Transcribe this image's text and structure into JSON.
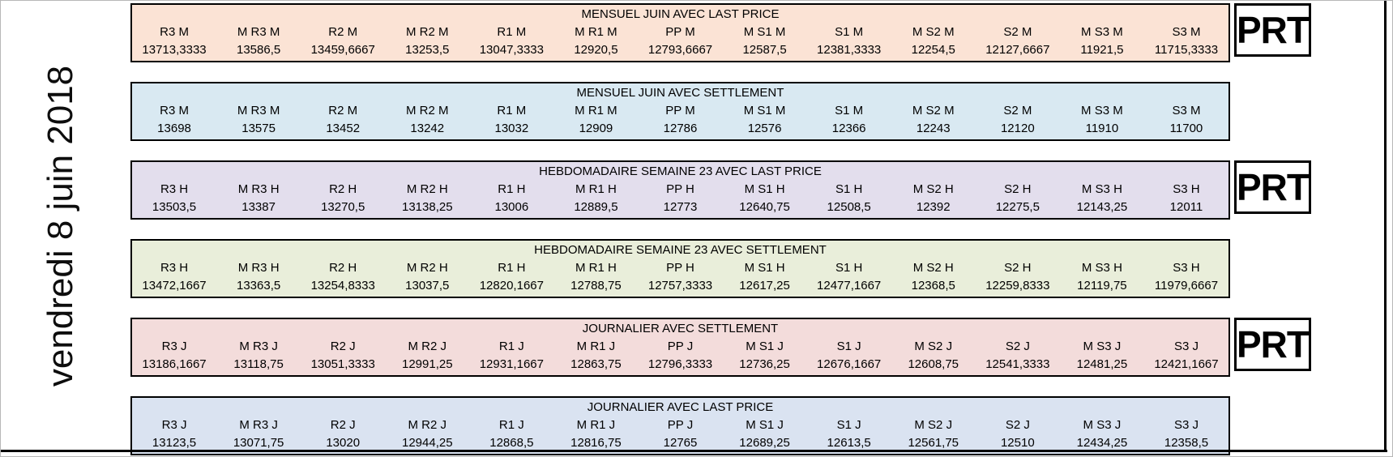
{
  "date_label": "vendredi 8 juin 2018",
  "prt_label": "PRT",
  "bands": [
    {
      "title": "MENSUEL JUIN AVEC LAST PRICE",
      "bg": "#fbe3d5",
      "prt": true,
      "columns": [
        {
          "label": "R3 M",
          "value": "13713,3333"
        },
        {
          "label": "M R3 M",
          "value": "13586,5"
        },
        {
          "label": "R2 M",
          "value": "13459,6667"
        },
        {
          "label": "M R2 M",
          "value": "13253,5"
        },
        {
          "label": "R1 M",
          "value": "13047,3333"
        },
        {
          "label": "M R1 M",
          "value": "12920,5"
        },
        {
          "label": "PP M",
          "value": "12793,6667"
        },
        {
          "label": "M S1 M",
          "value": "12587,5"
        },
        {
          "label": "S1 M",
          "value": "12381,3333"
        },
        {
          "label": "M S2 M",
          "value": "12254,5"
        },
        {
          "label": "S2 M",
          "value": "12127,6667"
        },
        {
          "label": "M S3 M",
          "value": "11921,5"
        },
        {
          "label": "S3 M",
          "value": "11715,3333"
        }
      ]
    },
    {
      "title": "MENSUEL JUIN AVEC SETTLEMENT",
      "bg": "#d9e9f2",
      "prt": false,
      "columns": [
        {
          "label": "R3 M",
          "value": "13698"
        },
        {
          "label": "M R3 M",
          "value": "13575"
        },
        {
          "label": "R2 M",
          "value": "13452"
        },
        {
          "label": "M R2 M",
          "value": "13242"
        },
        {
          "label": "R1 M",
          "value": "13032"
        },
        {
          "label": "M R1 M",
          "value": "12909"
        },
        {
          "label": "PP M",
          "value": "12786"
        },
        {
          "label": "M S1 M",
          "value": "12576"
        },
        {
          "label": "S1 M",
          "value": "12366"
        },
        {
          "label": "M S2 M",
          "value": "12243"
        },
        {
          "label": "S2 M",
          "value": "12120"
        },
        {
          "label": "M S3 M",
          "value": "11910"
        },
        {
          "label": "S3 M",
          "value": "11700"
        }
      ]
    },
    {
      "title": "HEBDOMADAIRE SEMAINE 23 AVEC LAST PRICE",
      "bg": "#e3deed",
      "prt": true,
      "columns": [
        {
          "label": "R3 H",
          "value": "13503,5"
        },
        {
          "label": "M R3 H",
          "value": "13387"
        },
        {
          "label": "R2 H",
          "value": "13270,5"
        },
        {
          "label": "M R2 H",
          "value": "13138,25"
        },
        {
          "label": "R1 H",
          "value": "13006"
        },
        {
          "label": "M R1 H",
          "value": "12889,5"
        },
        {
          "label": "PP H",
          "value": "12773"
        },
        {
          "label": "M S1 H",
          "value": "12640,75"
        },
        {
          "label": "S1 H",
          "value": "12508,5"
        },
        {
          "label": "M S2 H",
          "value": "12392"
        },
        {
          "label": "S2 H",
          "value": "12275,5"
        },
        {
          "label": "M S3 H",
          "value": "12143,25"
        },
        {
          "label": "S3 H",
          "value": "12011"
        }
      ]
    },
    {
      "title": "HEBDOMADAIRE SEMAINE 23 AVEC SETTLEMENT",
      "bg": "#e9eeda",
      "prt": false,
      "columns": [
        {
          "label": "R3 H",
          "value": "13472,1667"
        },
        {
          "label": "M R3 H",
          "value": "13363,5"
        },
        {
          "label": "R2 H",
          "value": "13254,8333"
        },
        {
          "label": "M R2 H",
          "value": "13037,5"
        },
        {
          "label": "R1 H",
          "value": "12820,1667"
        },
        {
          "label": "M R1 H",
          "value": "12788,75"
        },
        {
          "label": "PP H",
          "value": "12757,3333"
        },
        {
          "label": "M S1 H",
          "value": "12617,25"
        },
        {
          "label": "S1 H",
          "value": "12477,1667"
        },
        {
          "label": "M S2 H",
          "value": "12368,5"
        },
        {
          "label": "S2 H",
          "value": "12259,8333"
        },
        {
          "label": "M S3 H",
          "value": "12119,75"
        },
        {
          "label": "S3 H",
          "value": "11979,6667"
        }
      ]
    },
    {
      "title": "JOURNALIER AVEC SETTLEMENT",
      "bg": "#f3dcdb",
      "prt": true,
      "columns": [
        {
          "label": "R3 J",
          "value": "13186,1667"
        },
        {
          "label": "M R3 J",
          "value": "13118,75"
        },
        {
          "label": "R2 J",
          "value": "13051,3333"
        },
        {
          "label": "M R2 J",
          "value": "12991,25"
        },
        {
          "label": "R1 J",
          "value": "12931,1667"
        },
        {
          "label": "M R1 J",
          "value": "12863,75"
        },
        {
          "label": "PP J",
          "value": "12796,3333"
        },
        {
          "label": "M S1 J",
          "value": "12736,25"
        },
        {
          "label": "S1 J",
          "value": "12676,1667"
        },
        {
          "label": "M S2 J",
          "value": "12608,75"
        },
        {
          "label": "S2 J",
          "value": "12541,3333"
        },
        {
          "label": "M S3 J",
          "value": "12481,25"
        },
        {
          "label": "S3 J",
          "value": "12421,1667"
        }
      ]
    },
    {
      "title": "JOURNALIER AVEC LAST PRICE",
      "bg": "#dae3f1",
      "prt": false,
      "columns": [
        {
          "label": "R3 J",
          "value": "13123,5"
        },
        {
          "label": "M R3 J",
          "value": "13071,75"
        },
        {
          "label": "R2 J",
          "value": "13020"
        },
        {
          "label": "M R2 J",
          "value": "12944,25"
        },
        {
          "label": "R1 J",
          "value": "12868,5"
        },
        {
          "label": "M R1 J",
          "value": "12816,75"
        },
        {
          "label": "PP J",
          "value": "12765"
        },
        {
          "label": "M S1 J",
          "value": "12689,25"
        },
        {
          "label": "S1 J",
          "value": "12613,5"
        },
        {
          "label": "M S2 J",
          "value": "12561,75"
        },
        {
          "label": "S2 J",
          "value": "12510"
        },
        {
          "label": "M S3 J",
          "value": "12434,25"
        },
        {
          "label": "S3 J",
          "value": "12358,5"
        }
      ]
    }
  ]
}
